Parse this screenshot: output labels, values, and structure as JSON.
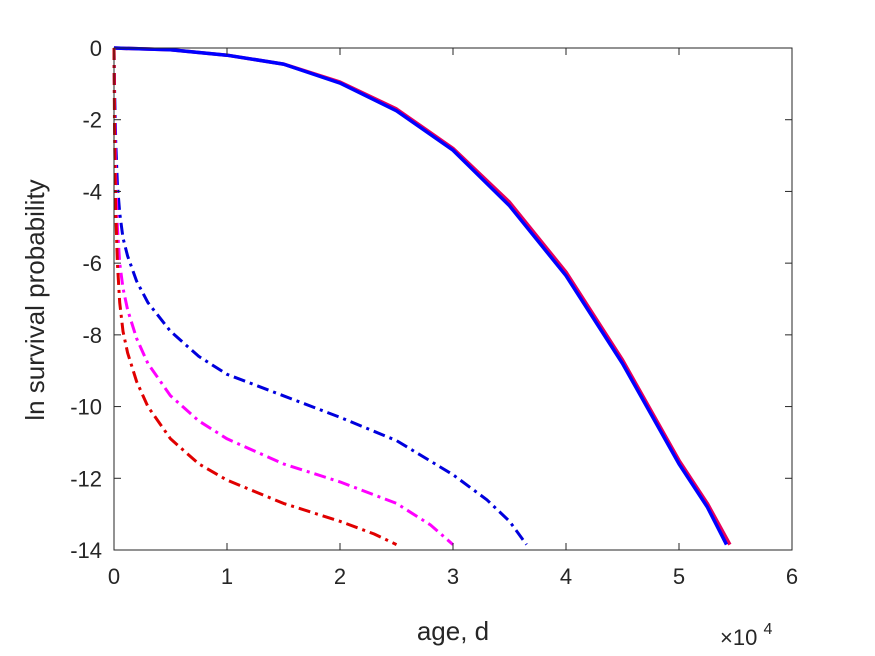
{
  "chart_data": {
    "type": "line",
    "title": "",
    "xlabel": "age, d",
    "ylabel": "ln survival probability",
    "x_exponent_label": "×10",
    "x_exponent_power": "4",
    "xlim": [
      0,
      60000
    ],
    "ylim": [
      -14,
      0
    ],
    "xticks": [
      0,
      10000,
      20000,
      30000,
      40000,
      50000,
      60000
    ],
    "xtick_labels": [
      "0",
      "1",
      "2",
      "3",
      "4",
      "5",
      "6"
    ],
    "yticks": [
      0,
      -2,
      -4,
      -6,
      -8,
      -10,
      -12,
      -14
    ],
    "ytick_labels": [
      "0",
      "-2",
      "-4",
      "-6",
      "-8",
      "-10",
      "-12",
      "-14"
    ],
    "grid": false,
    "legend": null,
    "series": [
      {
        "color": "#e8005a",
        "style": "solid",
        "x": [
          0,
          5000,
          10000,
          15000,
          20000,
          25000,
          30000,
          35000,
          40000,
          45000,
          50000,
          52500,
          54500
        ],
        "y": [
          0,
          -0.05,
          -0.2,
          -0.45,
          -0.95,
          -1.7,
          -2.8,
          -4.3,
          -6.25,
          -8.7,
          -11.5,
          -12.7,
          -13.85
        ]
      },
      {
        "color": "#0000ff",
        "style": "solid",
        "x": [
          0,
          5000,
          10000,
          15000,
          20000,
          25000,
          30000,
          35000,
          40000,
          45000,
          50000,
          52500,
          54200
        ],
        "y": [
          0,
          -0.05,
          -0.2,
          -0.45,
          -0.98,
          -1.75,
          -2.85,
          -4.4,
          -6.35,
          -8.8,
          -11.6,
          -12.8,
          -13.85
        ]
      },
      {
        "color": "#0000dd",
        "style": "dashdot",
        "x": [
          0,
          50,
          150,
          300,
          500,
          800,
          1200,
          2000,
          3000,
          5000,
          7500,
          10000,
          15000,
          20000,
          25000,
          30000,
          33000,
          35000,
          36500
        ],
        "y": [
          0,
          -1.2,
          -2.6,
          -3.8,
          -4.6,
          -5.3,
          -5.8,
          -6.5,
          -7.1,
          -7.9,
          -8.6,
          -9.1,
          -9.7,
          -10.3,
          -10.95,
          -11.9,
          -12.6,
          -13.2,
          -13.85
        ]
      },
      {
        "color": "#ff00ff",
        "style": "dashdot",
        "x": [
          0,
          50,
          150,
          300,
          500,
          800,
          1200,
          2000,
          3000,
          5000,
          7500,
          10000,
          15000,
          20000,
          25000,
          28000,
          30000
        ],
        "y": [
          0,
          -1.8,
          -3.6,
          -5.0,
          -6.0,
          -6.7,
          -7.3,
          -8.1,
          -8.8,
          -9.7,
          -10.4,
          -10.9,
          -11.6,
          -12.1,
          -12.7,
          -13.3,
          -13.85
        ]
      },
      {
        "color": "#e00000",
        "style": "dashdot",
        "x": [
          0,
          50,
          150,
          300,
          500,
          800,
          1200,
          2000,
          3000,
          5000,
          7500,
          10000,
          15000,
          20000,
          23000,
          25000
        ],
        "y": [
          0,
          -2.5,
          -4.5,
          -6.0,
          -7.1,
          -7.9,
          -8.5,
          -9.3,
          -10.0,
          -10.9,
          -11.6,
          -12.05,
          -12.7,
          -13.2,
          -13.55,
          -13.85
        ]
      }
    ]
  }
}
